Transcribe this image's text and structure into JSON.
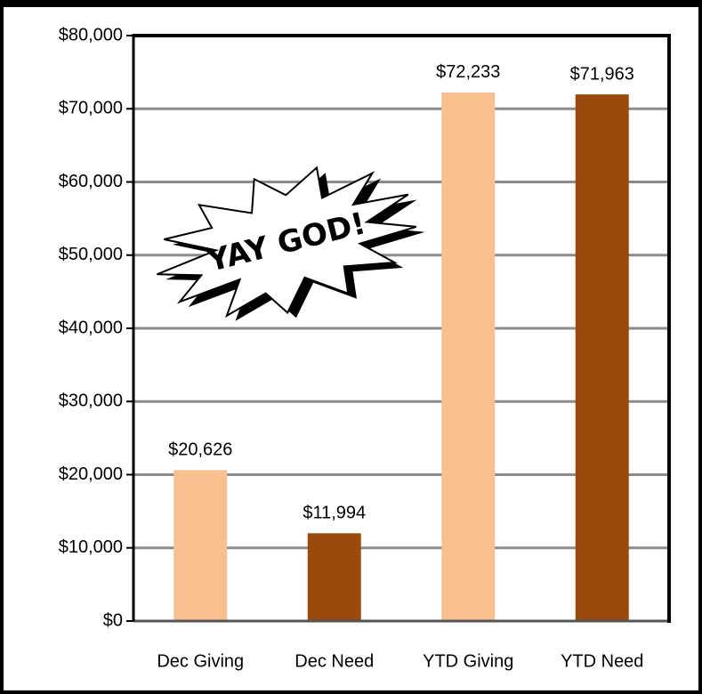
{
  "chart_data": {
    "type": "bar",
    "categories": [
      "Dec Giving",
      "Dec Need",
      "YTD Giving",
      "YTD Need"
    ],
    "values": [
      20626,
      11994,
      72233,
      71963
    ],
    "value_labels": [
      "$20,626",
      "$11,994",
      "$72,233",
      "$71,963"
    ],
    "colors": [
      "#f8c08e",
      "#9a4a0c",
      "#f8c08e",
      "#9a4a0c"
    ],
    "ylim": [
      0,
      80000
    ],
    "yticks": [
      {
        "value": 0,
        "label": "$0"
      },
      {
        "value": 10000,
        "label": "$10,000"
      },
      {
        "value": 20000,
        "label": "$20,000"
      },
      {
        "value": 30000,
        "label": "$30,000"
      },
      {
        "value": 40000,
        "label": "$40,000"
      },
      {
        "value": 50000,
        "label": "$50,000"
      },
      {
        "value": 60000,
        "label": "$60,000"
      },
      {
        "value": 70000,
        "label": "$70,000"
      },
      {
        "value": 80000,
        "label": "$80,000"
      }
    ],
    "grid": true,
    "annotation": "YAY GOD!"
  }
}
